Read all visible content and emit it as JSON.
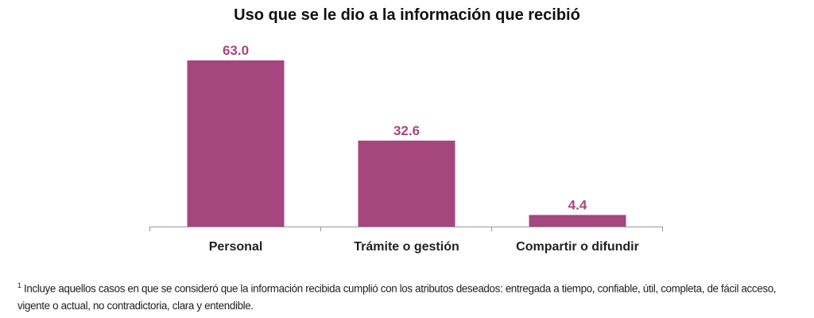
{
  "chart_data": {
    "type": "bar",
    "title": "Uso que se le dio a la información que recibió",
    "categories": [
      "Personal",
      "Trámite o gestión",
      "Compartir o difundir"
    ],
    "values": [
      63.0,
      32.6,
      4.4
    ],
    "value_labels": [
      "63.0",
      "32.6",
      "4.4"
    ],
    "xlabel": "",
    "ylabel": "",
    "ylim": [
      0,
      70
    ],
    "grid": false,
    "bar_color": "#a5467f",
    "label_color": "#a5467f"
  },
  "footnote": {
    "marker": "1",
    "text": " Incluye aquellos casos en que se consideró que la información recibida cumplió con los atributos deseados: entregada a tiempo, confiable, útil, completa, de fácil acceso, vigente o actual, no contradictoria, clara y entendible."
  }
}
